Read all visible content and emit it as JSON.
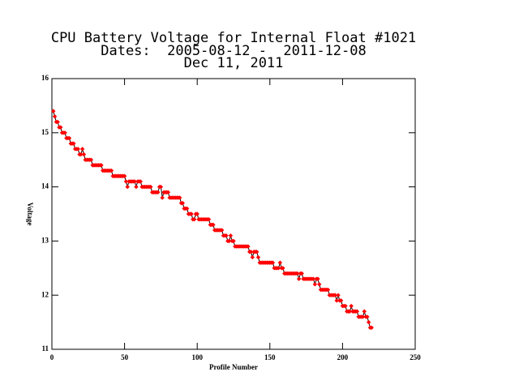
{
  "chart_data": {
    "type": "line",
    "title": [
      "CPU Battery Voltage for Internal Float #1021",
      "Dates:  2005-08-12 -  2011-12-08",
      "Dec 11, 2011"
    ],
    "x_label": "Profile Number",
    "y_label": "Voltage",
    "xlim": [
      0,
      250
    ],
    "xticks": [
      0,
      50,
      100,
      150,
      200,
      250
    ],
    "ylim": [
      11,
      16
    ],
    "yticks": [
      11,
      12,
      13,
      14,
      15,
      16
    ],
    "line_color": "#000000",
    "marker_color": "#ff0000",
    "x": [
      1,
      2,
      3,
      4,
      5,
      6,
      7,
      8,
      9,
      10,
      11,
      12,
      13,
      14,
      15,
      16,
      17,
      18,
      19,
      20,
      21,
      22,
      23,
      24,
      25,
      26,
      27,
      28,
      29,
      30,
      31,
      32,
      33,
      34,
      35,
      36,
      37,
      38,
      39,
      40,
      41,
      42,
      43,
      44,
      45,
      46,
      47,
      48,
      49,
      50,
      51,
      52,
      53,
      54,
      55,
      56,
      57,
      58,
      59,
      60,
      61,
      62,
      63,
      64,
      65,
      66,
      67,
      68,
      69,
      70,
      71,
      72,
      73,
      74,
      75,
      76,
      77,
      78,
      79,
      80,
      81,
      82,
      83,
      84,
      85,
      86,
      87,
      88,
      89,
      90,
      91,
      92,
      93,
      94,
      95,
      96,
      97,
      98,
      99,
      100,
      101,
      102,
      103,
      104,
      105,
      106,
      107,
      108,
      109,
      110,
      111,
      112,
      113,
      114,
      115,
      116,
      117,
      118,
      119,
      120,
      121,
      122,
      123,
      124,
      125,
      126,
      127,
      128,
      129,
      130,
      131,
      132,
      133,
      134,
      135,
      136,
      137,
      138,
      139,
      140,
      141,
      142,
      143,
      144,
      145,
      146,
      147,
      148,
      149,
      150,
      151,
      152,
      153,
      154,
      155,
      156,
      157,
      158,
      159,
      160,
      161,
      162,
      163,
      164,
      165,
      166,
      167,
      168,
      169,
      170,
      171,
      172,
      173,
      174,
      175,
      176,
      177,
      178,
      179,
      180,
      181,
      182,
      183,
      184,
      185,
      186,
      187,
      188,
      189,
      190,
      191,
      192,
      193,
      194,
      195,
      196,
      197,
      198,
      199,
      200,
      201,
      202,
      203,
      204,
      205,
      206,
      207,
      208,
      209,
      210,
      211,
      212,
      213,
      214,
      215,
      216,
      217,
      218,
      219,
      220
    ],
    "values": [
      15.4,
      15.3,
      15.2,
      15.2,
      15.1,
      15.1,
      15.0,
      15.0,
      15.0,
      14.9,
      14.9,
      14.9,
      14.8,
      14.8,
      14.8,
      14.7,
      14.7,
      14.7,
      14.6,
      14.6,
      14.7,
      14.6,
      14.5,
      14.5,
      14.5,
      14.5,
      14.5,
      14.4,
      14.4,
      14.4,
      14.4,
      14.4,
      14.4,
      14.4,
      14.3,
      14.3,
      14.3,
      14.3,
      14.3,
      14.3,
      14.3,
      14.2,
      14.2,
      14.2,
      14.2,
      14.2,
      14.2,
      14.2,
      14.2,
      14.2,
      14.1,
      14.0,
      14.1,
      14.1,
      14.1,
      14.1,
      14.1,
      14.0,
      14.1,
      14.1,
      14.1,
      14.0,
      14.0,
      14.0,
      14.0,
      14.0,
      14.0,
      14.0,
      13.9,
      13.9,
      13.9,
      13.9,
      13.9,
      14.0,
      14.0,
      13.8,
      13.9,
      13.9,
      13.9,
      13.9,
      13.8,
      13.8,
      13.8,
      13.8,
      13.8,
      13.8,
      13.8,
      13.8,
      13.7,
      13.7,
      13.6,
      13.6,
      13.6,
      13.5,
      13.5,
      13.5,
      13.4,
      13.4,
      13.5,
      13.5,
      13.4,
      13.4,
      13.4,
      13.4,
      13.4,
      13.4,
      13.4,
      13.4,
      13.3,
      13.3,
      13.3,
      13.2,
      13.2,
      13.2,
      13.2,
      13.2,
      13.2,
      13.1,
      13.1,
      13.1,
      13.0,
      13.0,
      13.1,
      13.0,
      13.0,
      12.9,
      12.9,
      12.9,
      12.9,
      12.9,
      12.9,
      12.9,
      12.9,
      12.9,
      12.9,
      12.8,
      12.8,
      12.7,
      12.8,
      12.8,
      12.8,
      12.7,
      12.6,
      12.6,
      12.6,
      12.6,
      12.6,
      12.6,
      12.6,
      12.6,
      12.6,
      12.6,
      12.5,
      12.5,
      12.5,
      12.5,
      12.6,
      12.5,
      12.5,
      12.4,
      12.4,
      12.4,
      12.4,
      12.4,
      12.4,
      12.4,
      12.4,
      12.4,
      12.4,
      12.3,
      12.4,
      12.4,
      12.3,
      12.3,
      12.3,
      12.3,
      12.3,
      12.3,
      12.3,
      12.3,
      12.2,
      12.3,
      12.3,
      12.2,
      12.1,
      12.1,
      12.1,
      12.1,
      12.1,
      12.1,
      12.0,
      12.0,
      12.0,
      12.0,
      12.0,
      11.9,
      12.0,
      11.9,
      11.9,
      11.8,
      11.8,
      11.8,
      11.7,
      11.7,
      11.7,
      11.8,
      11.7,
      11.7,
      11.7,
      11.7,
      11.6,
      11.6,
      11.6,
      11.6,
      11.7,
      11.6,
      11.6,
      11.5,
      11.4,
      11.4
    ]
  }
}
